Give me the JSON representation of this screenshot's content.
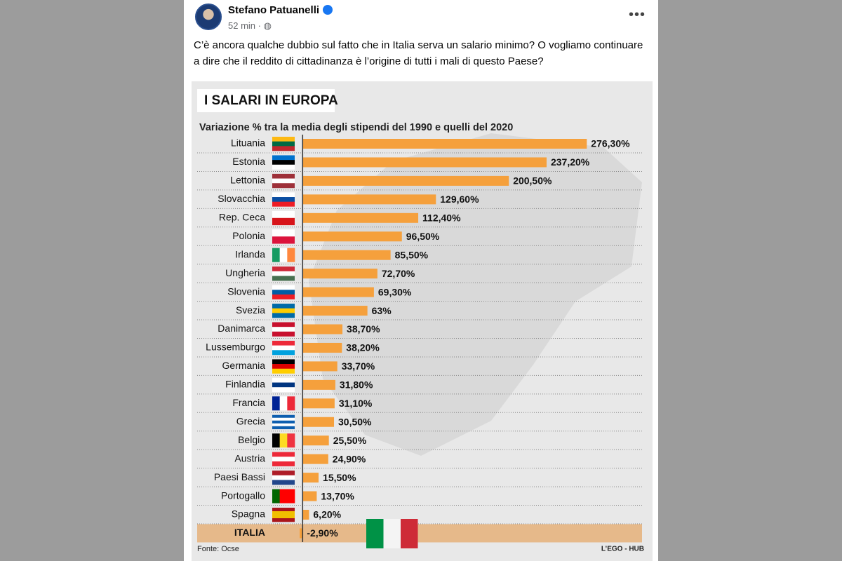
{
  "post": {
    "author": "Stefano Patuanelli",
    "time": "52 min",
    "text": "C’è ancora qualche dubbio sul fatto che in Italia serva un salario minimo? O vogliamo continuare a dire che il reddito di cittadinanza è l’origine di tutti i mali di questo Paese?"
  },
  "chart_data": {
    "type": "bar",
    "orientation": "horizontal",
    "title": "I SALARI IN EUROPA",
    "subtitle": "Variazione % tra la media degli stipendi del 1990 e quelli del  2020",
    "categories": [
      "Lituania",
      "Estonia",
      "Lettonia",
      "Slovacchia",
      "Rep. Ceca",
      "Polonia",
      "Irlanda",
      "Ungheria",
      "Slovenia",
      "Svezia",
      "Danimarca",
      "Lussemburgo",
      "Germania",
      "Finlandia",
      "Francia",
      "Grecia",
      "Belgio",
      "Austria",
      "Paesi Bassi",
      "Portogallo",
      "Spagna",
      "ITALIA"
    ],
    "values": [
      276.3,
      237.2,
      200.5,
      129.6,
      112.4,
      96.5,
      85.5,
      72.7,
      69.3,
      63,
      38.7,
      38.2,
      33.7,
      31.8,
      31.1,
      30.5,
      25.5,
      24.9,
      15.5,
      13.7,
      6.2,
      -2.9
    ],
    "value_labels": [
      "276,30%",
      "237,20%",
      "200,50%",
      "129,60%",
      "112,40%",
      "96,50%",
      "85,50%",
      "72,70%",
      "69,30%",
      "63%",
      "38,70%",
      "38,20%",
      "33,70%",
      "31,80%",
      "31,10%",
      "30,50%",
      "25,50%",
      "24,90%",
      "15,50%",
      "13,70%",
      "6,20%",
      "-2,90%"
    ],
    "color": "#f5a03c",
    "xlim": [
      -20,
      330
    ],
    "source": "Fonte: Ocse",
    "credit": "L’EGO - HUB"
  }
}
